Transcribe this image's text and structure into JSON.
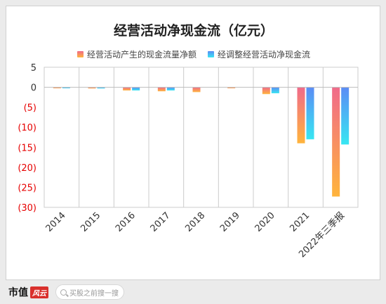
{
  "colors": {
    "series1_top": "#f06a8a",
    "series1_bottom": "#ffb43c",
    "series2_top": "#5b8cf5",
    "series2_bottom": "#38e6f2",
    "negative_tick": "#e60000",
    "grid": "#cccccc",
    "axis_text": "#333333"
  },
  "footer": {
    "brand": "市值",
    "brand_mark": "风云",
    "search_placeholder": "买股之前搜一搜"
  },
  "chart_data": {
    "type": "bar",
    "title": "经营活动净现金流（亿元）",
    "legend_position": "top",
    "categories": [
      "2014",
      "2015",
      "2016",
      "2017",
      "2018",
      "2019",
      "2020",
      "2021",
      "2022年三季报"
    ],
    "series": [
      {
        "name": "经营活动产生的现金流量净额",
        "values": [
          -0.2,
          -0.3,
          -0.8,
          -1.0,
          -1.2,
          -0.1,
          -1.7,
          -14.0,
          -27.3
        ]
      },
      {
        "name": "经调整经营活动净现金流",
        "values": [
          -0.2,
          -0.3,
          -0.8,
          -0.8,
          0,
          0,
          -1.5,
          -13.0,
          -14.3
        ]
      }
    ],
    "ylim": [
      -30,
      5
    ],
    "yticks": [
      5,
      0,
      -5,
      -10,
      -15,
      -20,
      -25,
      -30
    ],
    "ytick_labels": [
      "5",
      "0",
      "(5)",
      "(10)",
      "(15)",
      "(20)",
      "(25)",
      "(30)"
    ],
    "grid": true
  }
}
